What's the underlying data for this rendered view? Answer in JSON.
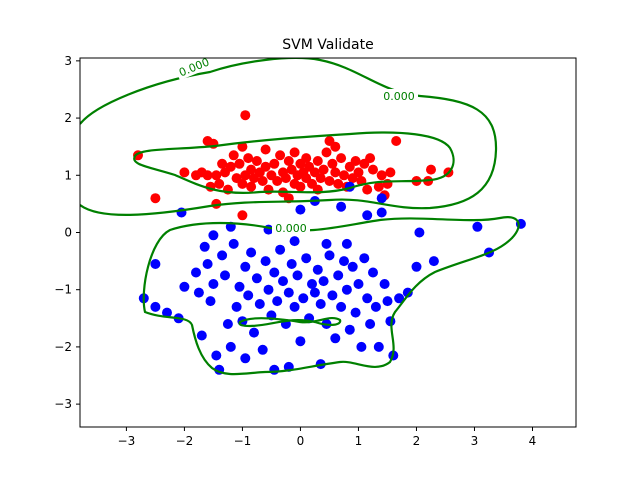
{
  "chart_data": {
    "type": "scatter",
    "title": "SVM Validate",
    "xlabel": "",
    "ylabel": "",
    "xlim": [
      -3.8,
      4.75
    ],
    "ylim": [
      -3.4,
      3.05
    ],
    "x_ticks": [
      -3,
      -2,
      -1,
      0,
      1,
      2,
      3,
      4
    ],
    "y_ticks": [
      -3,
      -2,
      -1,
      0,
      1,
      2,
      3
    ],
    "x_tick_labels": [
      "−3",
      "−2",
      "−1",
      "0",
      "1",
      "2",
      "3",
      "4"
    ],
    "y_tick_labels": [
      "−3",
      "−2",
      "−1",
      "0",
      "1",
      "2",
      "3"
    ],
    "grid": false,
    "legend": "none",
    "contour_level_label": "0.000",
    "colors": {
      "class_a": "#ff0000",
      "class_b": "#0000ff",
      "decision_boundary": "#008000"
    },
    "series": [
      {
        "color": "#ff0000",
        "points": [
          [
            -2.8,
            1.35
          ],
          [
            -2.5,
            0.6
          ],
          [
            -2.0,
            1.05
          ],
          [
            -1.8,
            1.0
          ],
          [
            -1.7,
            1.05
          ],
          [
            -1.6,
            1.0
          ],
          [
            -1.55,
            0.8
          ],
          [
            -1.5,
            1.55
          ],
          [
            -1.45,
            1.0
          ],
          [
            -1.4,
            0.85
          ],
          [
            -1.35,
            1.2
          ],
          [
            -1.3,
            1.05
          ],
          [
            -1.25,
            0.75
          ],
          [
            -1.2,
            1.15
          ],
          [
            -1.15,
            1.35
          ],
          [
            -1.1,
            0.95
          ],
          [
            -1.05,
            1.2
          ],
          [
            -1.0,
            0.85
          ],
          [
            -1.0,
            1.5
          ],
          [
            -0.95,
            1.0
          ],
          [
            -0.95,
            2.05
          ],
          [
            -0.9,
            1.3
          ],
          [
            -0.85,
            1.1
          ],
          [
            -0.85,
            0.8
          ],
          [
            -0.8,
            0.95
          ],
          [
            -0.75,
            1.25
          ],
          [
            -0.7,
            1.05
          ],
          [
            -0.65,
            0.9
          ],
          [
            -0.6,
            1.15
          ],
          [
            -0.6,
            1.45
          ],
          [
            -0.55,
            0.75
          ],
          [
            -0.5,
            1.0
          ],
          [
            -0.45,
            1.2
          ],
          [
            -0.4,
            0.9
          ],
          [
            -0.35,
            1.35
          ],
          [
            -0.3,
            1.05
          ],
          [
            -0.3,
            0.7
          ],
          [
            -0.25,
            0.95
          ],
          [
            -0.2,
            1.25
          ],
          [
            -0.15,
            1.1
          ],
          [
            -0.1,
            0.85
          ],
          [
            -0.1,
            1.4
          ],
          [
            -0.05,
            1.0
          ],
          [
            0.0,
            1.2
          ],
          [
            0.0,
            0.8
          ],
          [
            0.05,
            1.05
          ],
          [
            0.1,
            0.95
          ],
          [
            0.1,
            1.3
          ],
          [
            0.15,
            1.15
          ],
          [
            0.2,
            0.85
          ],
          [
            0.25,
            1.05
          ],
          [
            0.3,
            1.25
          ],
          [
            0.3,
            0.75
          ],
          [
            0.35,
            0.95
          ],
          [
            0.4,
            1.1
          ],
          [
            0.45,
            1.4
          ],
          [
            0.5,
            0.9
          ],
          [
            0.5,
            1.6
          ],
          [
            0.55,
            1.2
          ],
          [
            0.6,
            1.05
          ],
          [
            0.65,
            0.85
          ],
          [
            0.7,
            1.3
          ],
          [
            0.75,
            1.0
          ],
          [
            0.8,
            0.8
          ],
          [
            0.85,
            1.15
          ],
          [
            0.9,
            0.95
          ],
          [
            0.95,
            1.25
          ],
          [
            1.0,
            1.05
          ],
          [
            1.05,
            0.9
          ],
          [
            1.1,
            1.2
          ],
          [
            1.15,
            0.75
          ],
          [
            1.25,
            1.1
          ],
          [
            1.35,
            0.8
          ],
          [
            1.4,
            1.0
          ],
          [
            1.45,
            0.65
          ],
          [
            1.5,
            0.85
          ],
          [
            1.55,
            1.05
          ],
          [
            1.65,
            1.6
          ],
          [
            2.0,
            0.9
          ],
          [
            2.2,
            0.9
          ],
          [
            2.25,
            1.1
          ],
          [
            2.55,
            1.05
          ],
          [
            -1.6,
            1.6
          ],
          [
            -1.45,
            0.5
          ],
          [
            -1.0,
            0.3
          ],
          [
            -0.2,
            0.6
          ],
          [
            0.6,
            1.5
          ],
          [
            1.2,
            1.3
          ]
        ]
      },
      {
        "color": "#0000ff",
        "points": [
          [
            -2.5,
            -0.55
          ],
          [
            -2.7,
            -1.15
          ],
          [
            -2.5,
            -1.3
          ],
          [
            -2.3,
            -1.4
          ],
          [
            -2.1,
            -1.5
          ],
          [
            -2.05,
            0.35
          ],
          [
            -2.0,
            -0.95
          ],
          [
            -1.8,
            -0.7
          ],
          [
            -1.75,
            -1.05
          ],
          [
            -1.7,
            -1.8
          ],
          [
            -1.65,
            -0.25
          ],
          [
            -1.6,
            -0.55
          ],
          [
            -1.55,
            -1.2
          ],
          [
            -1.5,
            -0.9
          ],
          [
            -1.45,
            -2.15
          ],
          [
            -1.4,
            -2.4
          ],
          [
            -1.35,
            -0.4
          ],
          [
            -1.3,
            -0.75
          ],
          [
            -1.25,
            -1.6
          ],
          [
            -1.2,
            -2.0
          ],
          [
            -1.15,
            -0.2
          ],
          [
            -1.1,
            -1.3
          ],
          [
            -1.05,
            -0.95
          ],
          [
            -1.0,
            -1.55
          ],
          [
            -0.95,
            -0.6
          ],
          [
            -0.95,
            -2.2
          ],
          [
            -0.9,
            -1.1
          ],
          [
            -0.85,
            -0.35
          ],
          [
            -0.8,
            -1.75
          ],
          [
            -0.75,
            -0.8
          ],
          [
            -0.7,
            -1.25
          ],
          [
            -0.65,
            -2.05
          ],
          [
            -0.6,
            -0.5
          ],
          [
            -0.55,
            -1.0
          ],
          [
            -0.5,
            -1.45
          ],
          [
            -0.45,
            -0.7
          ],
          [
            -0.45,
            -2.4
          ],
          [
            -0.4,
            -1.2
          ],
          [
            -0.35,
            -0.3
          ],
          [
            -0.3,
            -0.85
          ],
          [
            -0.25,
            -1.6
          ],
          [
            -0.2,
            -1.05
          ],
          [
            -0.2,
            -2.35
          ],
          [
            -0.15,
            -0.55
          ],
          [
            -0.1,
            -1.3
          ],
          [
            -0.05,
            -0.75
          ],
          [
            0.0,
            -1.9
          ],
          [
            0.0,
            0.4
          ],
          [
            0.05,
            -1.15
          ],
          [
            0.1,
            -0.45
          ],
          [
            0.15,
            -1.5
          ],
          [
            0.2,
            -0.9
          ],
          [
            0.25,
            -1.05
          ],
          [
            0.3,
            -0.65
          ],
          [
            0.35,
            -1.25
          ],
          [
            0.35,
            -2.3
          ],
          [
            0.4,
            -0.85
          ],
          [
            0.45,
            -1.6
          ],
          [
            0.5,
            -0.4
          ],
          [
            0.55,
            -1.1
          ],
          [
            0.6,
            -1.85
          ],
          [
            0.65,
            -0.75
          ],
          [
            0.7,
            -1.3
          ],
          [
            0.75,
            -0.5
          ],
          [
            0.8,
            -1.0
          ],
          [
            0.85,
            -1.7
          ],
          [
            0.9,
            -0.6
          ],
          [
            0.95,
            -1.4
          ],
          [
            1.0,
            -0.9
          ],
          [
            1.05,
            -2.0
          ],
          [
            1.1,
            -0.45
          ],
          [
            1.15,
            -1.15
          ],
          [
            1.2,
            -1.6
          ],
          [
            1.25,
            -0.7
          ],
          [
            1.3,
            -1.3
          ],
          [
            1.35,
            -2.0
          ],
          [
            1.45,
            -0.9
          ],
          [
            1.5,
            -1.2
          ],
          [
            1.55,
            -1.55
          ],
          [
            1.6,
            -2.15
          ],
          [
            1.7,
            -1.15
          ],
          [
            1.85,
            -1.05
          ],
          [
            2.0,
            -0.6
          ],
          [
            2.05,
            0.0
          ],
          [
            2.3,
            -0.5
          ],
          [
            3.05,
            0.1
          ],
          [
            3.25,
            -0.35
          ],
          [
            3.8,
            0.15
          ],
          [
            1.4,
            0.35
          ],
          [
            0.7,
            0.45
          ],
          [
            -1.2,
            0.1
          ],
          [
            0.25,
            0.55
          ],
          [
            0.85,
            0.8
          ],
          [
            1.4,
            0.6
          ],
          [
            -0.55,
            0.05
          ],
          [
            0.45,
            -0.2
          ],
          [
            -0.1,
            -0.15
          ],
          [
            1.15,
            0.3
          ],
          [
            -1.5,
            -0.05
          ],
          [
            0.8,
            -0.2
          ]
        ]
      }
    ]
  }
}
